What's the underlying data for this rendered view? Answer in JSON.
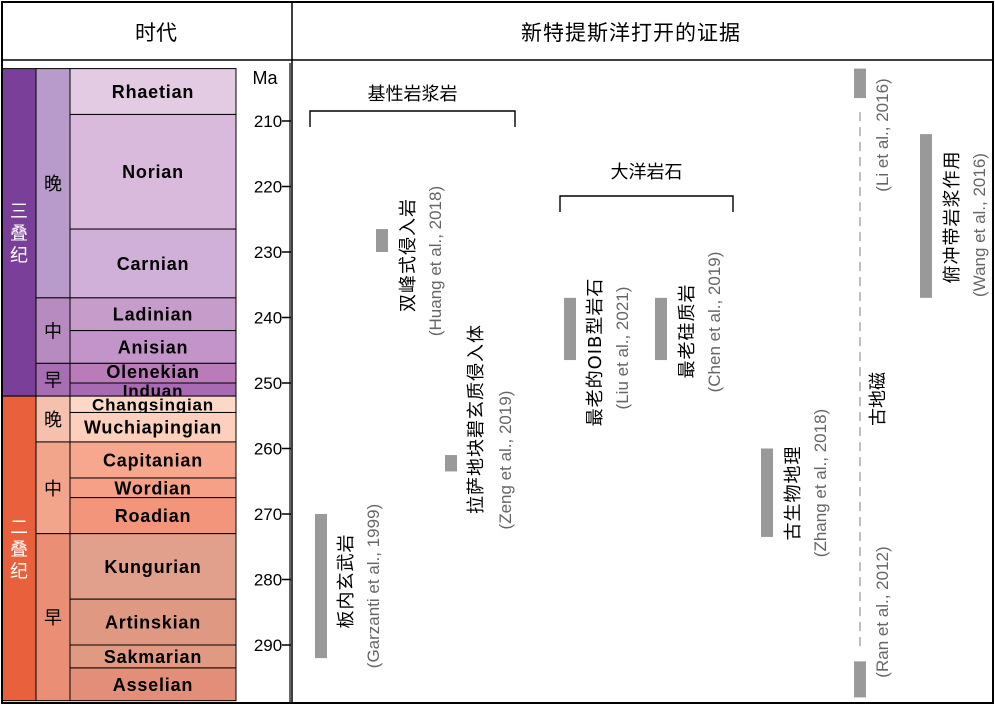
{
  "header": {
    "left": "时代",
    "right": "新特提斯洋打开的证据"
  },
  "chart_data": {
    "type": "range-bar",
    "axis_label": "Ma",
    "ticks": [
      210,
      220,
      230,
      240,
      250,
      260,
      270,
      280,
      290
    ],
    "y_range": [
      202,
      298.5
    ],
    "periods": [
      {
        "name": "三叠纪",
        "top": 202,
        "bottom": 252,
        "color": "#7a3f98"
      },
      {
        "name": "二叠纪",
        "top": 252,
        "bottom": 298.5,
        "color": "#e8603c"
      }
    ],
    "epochs": [
      {
        "name": "晚",
        "top": 202,
        "bottom": 237,
        "color": "#b89bcb"
      },
      {
        "name": "中",
        "top": 237,
        "bottom": 247,
        "color": "#b78bc0"
      },
      {
        "name": "早",
        "top": 247,
        "bottom": 252,
        "color": "#a86eb3"
      },
      {
        "name": "晚",
        "top": 252,
        "bottom": 259,
        "color": "#f5c0ad"
      },
      {
        "name": "中",
        "top": 259,
        "bottom": 273,
        "color": "#f2a58b"
      },
      {
        "name": "早",
        "top": 273,
        "bottom": 298.5,
        "color": "#ea8e75"
      }
    ],
    "stages": [
      {
        "name": "Rhaetian",
        "top": 202,
        "bottom": 209,
        "color": "#e3cbe3"
      },
      {
        "name": "Norian",
        "top": 209,
        "bottom": 226.5,
        "color": "#d9b9dc"
      },
      {
        "name": "Carnian",
        "top": 226.5,
        "bottom": 237,
        "color": "#d0b0d8"
      },
      {
        "name": "Ladinian",
        "top": 237,
        "bottom": 242,
        "color": "#c69ccb"
      },
      {
        "name": "Anisian",
        "top": 242,
        "bottom": 247,
        "color": "#c294c9"
      },
      {
        "name": "Olenekian",
        "top": 247,
        "bottom": 250,
        "color": "#b97cb9"
      },
      {
        "name": "Induan",
        "top": 250,
        "bottom": 252,
        "color": "#a86ab3"
      },
      {
        "name": "Changsingian",
        "top": 252,
        "bottom": 254.5,
        "color": "#fcd9c7"
      },
      {
        "name": "Wuchiapingian",
        "top": 254.5,
        "bottom": 259,
        "color": "#fcd0bd"
      },
      {
        "name": "Capitanian",
        "top": 259,
        "bottom": 264.5,
        "color": "#f7a78e"
      },
      {
        "name": "Wordian",
        "top": 264.5,
        "bottom": 267.5,
        "color": "#f5a087"
      },
      {
        "name": "Roadian",
        "top": 267.5,
        "bottom": 273,
        "color": "#f2957b"
      },
      {
        "name": "Kungurian",
        "top": 273,
        "bottom": 283,
        "color": "#e0a08b"
      },
      {
        "name": "Artinskian",
        "top": 283,
        "bottom": 290,
        "color": "#df9882"
      },
      {
        "name": "Sakmarian",
        "top": 290,
        "bottom": 293.5,
        "color": "#e09a82"
      },
      {
        "name": "Asselian",
        "top": 293.5,
        "bottom": 298.5,
        "color": "#e28e78"
      }
    ],
    "groups": [
      {
        "label": "基性岩浆岩"
      },
      {
        "label": "大洋岩石"
      }
    ],
    "evidence": [
      {
        "label": "板内玄武岩",
        "citation": "(Garzanti et al., 1999)",
        "from": 270,
        "to": 292
      },
      {
        "label": "双峰式侵入岩",
        "citation": "(Huang et al., 2018)",
        "from": 226.5,
        "to": 230
      },
      {
        "label": "拉萨地块碧玄质侵入体",
        "citation": "(Zeng et al., 2019)",
        "from": 261,
        "to": 263.5
      },
      {
        "label": "最老的OIB型岩石",
        "citation": "(Liu et al., 2021)",
        "from": 237,
        "to": 246.5
      },
      {
        "label": "最老硅质岩",
        "citation": "(Chen et al., 2019)",
        "from": 237,
        "to": 246.5
      },
      {
        "label": "古生物地理",
        "citation": "(Zhang et al., 2018)",
        "from": 260,
        "to": 273.5
      },
      {
        "label": "俯冲带岩浆作用",
        "citation": "(Wang et al., 2016)",
        "from": 212,
        "to": 237
      }
    ],
    "paleomag": {
      "label": "古地磁",
      "citation_top": "(Li et al., 2016)",
      "citation_bottom": "(Ran et al., 2012)",
      "bar_top_from": 202,
      "bar_top_to": 206.5,
      "bar_bottom_from": 292.5,
      "bar_bottom_to": 298
    }
  }
}
